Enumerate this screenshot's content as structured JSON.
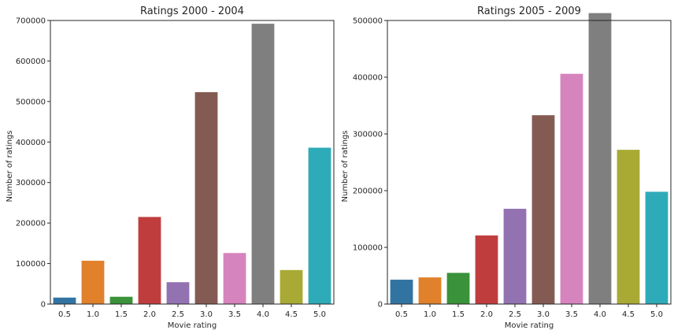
{
  "chart_data": [
    {
      "type": "bar",
      "title": "Ratings 2000 - 2004",
      "xlabel": "Movie rating",
      "ylabel": "Number of ratings",
      "categories": [
        "0.5",
        "1.0",
        "1.5",
        "2.0",
        "2.5",
        "3.0",
        "3.5",
        "4.0",
        "4.5",
        "5.0"
      ],
      "values": [
        16000,
        107000,
        18000,
        215000,
        54000,
        523000,
        126000,
        692000,
        84000,
        386000
      ],
      "ylim": [
        0,
        700000
      ],
      "yticks": [
        "0",
        "100000",
        "200000",
        "300000",
        "400000",
        "500000",
        "600000",
        "700000"
      ],
      "grid": false
    },
    {
      "type": "bar",
      "title": "Ratings 2005 - 2009",
      "xlabel": "Movie rating",
      "ylabel": "Number of ratings",
      "categories": [
        "0.5",
        "1.0",
        "1.5",
        "2.0",
        "2.5",
        "3.0",
        "3.5",
        "4.0",
        "4.5",
        "5.0"
      ],
      "values": [
        43000,
        47000,
        55000,
        121000,
        168000,
        333000,
        406000,
        513000,
        272000,
        198000
      ],
      "ylim": [
        0,
        500000
      ],
      "yticks": [
        "0",
        "100000",
        "200000",
        "300000",
        "400000",
        "500000"
      ],
      "grid": false
    }
  ],
  "colors": [
    "#3274a1",
    "#e1812c",
    "#3a923a",
    "#c03d3e",
    "#9372b2",
    "#845b53",
    "#d684bd",
    "#7f7f7f",
    "#a9aa35",
    "#2eabb8"
  ]
}
